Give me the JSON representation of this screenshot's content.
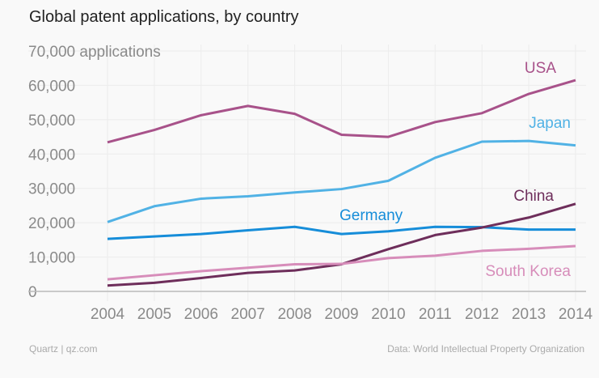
{
  "chart_data": {
    "type": "line",
    "title": "Global patent applications, by country",
    "ylabel": "applications",
    "ylim": [
      0,
      70000
    ],
    "yticks": [
      0,
      10000,
      20000,
      30000,
      40000,
      50000,
      60000,
      70000
    ],
    "ytick_labels": [
      "0",
      "10,000",
      "20,000",
      "30,000",
      "40,000",
      "50,000",
      "60,000",
      "70,000 applications"
    ],
    "x": [
      2004,
      2005,
      2006,
      2007,
      2008,
      2009,
      2010,
      2011,
      2012,
      2013,
      2014
    ],
    "xtick_labels": [
      "2004",
      "2005",
      "2006",
      "2007",
      "2008",
      "2009",
      "2010",
      "2011",
      "2012",
      "2013",
      "2014"
    ],
    "grid": true,
    "series": [
      {
        "name": "USA",
        "color": "#a8528a",
        "values": [
          43400,
          47000,
          51300,
          54000,
          51700,
          45600,
          45000,
          49300,
          51900,
          57500,
          61500
        ]
      },
      {
        "name": "Japan",
        "color": "#51b2e5",
        "values": [
          20200,
          24800,
          27000,
          27700,
          28800,
          29800,
          32200,
          38900,
          43600,
          43800,
          42500
        ]
      },
      {
        "name": "Germany",
        "color": "#168dd9",
        "values": [
          15300,
          16000,
          16700,
          17800,
          18800,
          16700,
          17500,
          18800,
          18700,
          18000,
          18000
        ]
      },
      {
        "name": "China",
        "color": "#6e2e5b",
        "values": [
          1700,
          2500,
          3900,
          5400,
          6100,
          7900,
          12300,
          16400,
          18600,
          21500,
          25500
        ]
      },
      {
        "name": "South Korea",
        "color": "#d78dba",
        "values": [
          3500,
          4700,
          5900,
          6900,
          7900,
          8000,
          9700,
          10400,
          11800,
          12400,
          13200
        ]
      }
    ]
  },
  "footer": {
    "source_left": "Quartz | qz.com",
    "source_right": "Data: World Intellectual Property Organization"
  }
}
